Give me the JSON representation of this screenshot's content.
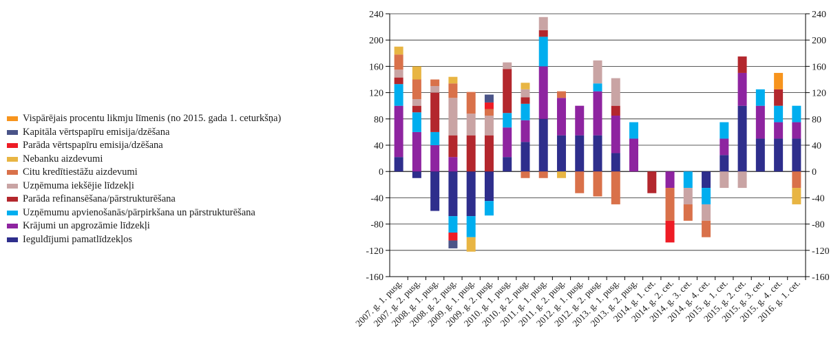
{
  "chart_data": {
    "type": "bar",
    "stacked": true,
    "ylim": [
      -160,
      240
    ],
    "yticks": [
      240,
      200,
      160,
      120,
      80,
      40,
      0,
      -40,
      -80,
      -120,
      -160
    ],
    "grid": true,
    "legend_position": "left",
    "categories": [
      "2007. g. 1. pusg.",
      "2007. g. 2. pusg.",
      "2008. g. 1. pusg.",
      "2008. g. 2. pusg.",
      "2009. g. 1. pusg.",
      "2009. g. 2. pusg.",
      "2010. g. 1. pusg.",
      "2010. g. 2. pusg.",
      "2011. g. 1. pusg.",
      "2011. g. 2. pusg.",
      "2012. g. 1. pusg.",
      "2012. g. 2. pusg.",
      "2013. g. 1. pusg.",
      "2013. g. 2. pusg.",
      "2014. g. 1. cet.",
      "2014. g. 2. cet.",
      "2014. g. 3. cet.",
      "2014. g. 4. cet.",
      "2015. g. 1. cet.",
      "2015. g. 2. cet.",
      "2015. g. 3. cet.",
      "2015. g. 4. cet.",
      "2016. g. 1. cet."
    ],
    "series": [
      {
        "name": "Ieguldījumi pamatlīdzekļos",
        "color": "#2e2e8c",
        "values": [
          22,
          -10,
          -60,
          -68,
          -68,
          -45,
          22,
          45,
          80,
          55,
          55,
          55,
          28,
          0,
          0,
          0,
          0,
          -25,
          25,
          100,
          50,
          50,
          50
        ]
      },
      {
        "name": "Krājumi un apgrozāmie līdzekļi",
        "color": "#8e24a0",
        "values": [
          78,
          60,
          40,
          22,
          0,
          0,
          45,
          33,
          80,
          57,
          45,
          67,
          57,
          50,
          0,
          -25,
          0,
          0,
          25,
          50,
          50,
          25,
          25
        ]
      },
      {
        "name": "Uzņēmumu apvienošanās/pārpirkšana un pārstrukturēšana",
        "color": "#00aeef",
        "values": [
          33,
          30,
          20,
          -25,
          -32,
          -22,
          22,
          25,
          45,
          0,
          0,
          12,
          0,
          25,
          0,
          0,
          -25,
          -25,
          25,
          0,
          25,
          25,
          25
        ]
      },
      {
        "name": "Parāda refinansēšana/pārstrukturēšana",
        "color": "#b3272d",
        "values": [
          10,
          10,
          60,
          33,
          55,
          55,
          67,
          10,
          10,
          0,
          0,
          0,
          15,
          0,
          -33,
          0,
          0,
          0,
          0,
          25,
          0,
          25,
          0
        ]
      },
      {
        "name": "Uzņēmuma iekšējie līdzekļi",
        "color": "#c9a4a4",
        "values": [
          12,
          10,
          10,
          57,
          33,
          30,
          10,
          12,
          20,
          0,
          0,
          35,
          42,
          0,
          0,
          0,
          -25,
          -25,
          -25,
          -25,
          0,
          0,
          0
        ]
      },
      {
        "name": "Citu kredītiestāžu aizdevumi",
        "color": "#d9714a",
        "values": [
          23,
          30,
          10,
          22,
          33,
          10,
          0,
          -10,
          -10,
          10,
          -33,
          -38,
          -50,
          0,
          0,
          -50,
          -25,
          -25,
          0,
          0,
          0,
          0,
          -25
        ]
      },
      {
        "name": "Nebanku aizdevumi",
        "color": "#e8b543",
        "values": [
          12,
          20,
          0,
          10,
          -22,
          0,
          0,
          10,
          0,
          -10,
          0,
          0,
          0,
          0,
          0,
          0,
          0,
          0,
          0,
          0,
          0,
          0,
          -25
        ]
      },
      {
        "name": "Parāda vērtspapīru emisija/dzēšana",
        "color": "#ee1c25",
        "values": [
          0,
          0,
          0,
          -12,
          0,
          10,
          0,
          0,
          0,
          0,
          0,
          0,
          0,
          0,
          0,
          -33,
          0,
          0,
          0,
          0,
          0,
          0,
          0
        ]
      },
      {
        "name": "Kapitāla vērtspapīru emisija/dzēšana",
        "color": "#4a5488",
        "values": [
          0,
          0,
          0,
          -12,
          0,
          12,
          0,
          0,
          0,
          0,
          0,
          0,
          0,
          0,
          0,
          0,
          0,
          0,
          0,
          0,
          0,
          0,
          0
        ]
      },
      {
        "name": "Vispārējais procentu likmju līmenis (no 2015. gada 1. ceturkšņa)",
        "color": "#f7941d",
        "values": [
          0,
          0,
          0,
          0,
          0,
          0,
          0,
          0,
          0,
          0,
          0,
          0,
          0,
          0,
          0,
          0,
          0,
          0,
          0,
          0,
          0,
          25,
          0
        ]
      }
    ]
  },
  "legend": [
    {
      "label": "Vispārējais procentu likmju līmenis (no 2015. gada 1. ceturkšņa)",
      "color": "#f7941d"
    },
    {
      "label": "Kapitāla vērtspapīru emisija/dzēšana",
      "color": "#4a5488"
    },
    {
      "label": "Parāda vērtspapīru emisija/dzēšana",
      "color": "#ee1c25"
    },
    {
      "label": "Nebanku aizdevumi",
      "color": "#e8b543"
    },
    {
      "label": "Citu kredītiestāžu aizdevumi",
      "color": "#d9714a"
    },
    {
      "label": "Uzņēmuma iekšējie līdzekļi",
      "color": "#c9a4a4"
    },
    {
      "label": "Parāda refinansēšana/pārstrukturēšana",
      "color": "#b3272d"
    },
    {
      "label": "Uzņēmumu apvienošanās/pārpirkšana un pārstrukturēšana",
      "color": "#00aeef"
    },
    {
      "label": "Krājumi un apgrozāmie līdzekļi",
      "color": "#8e24a0"
    },
    {
      "label": "Ieguldījumi pamatlīdzekļos",
      "color": "#2e2e8c"
    }
  ]
}
